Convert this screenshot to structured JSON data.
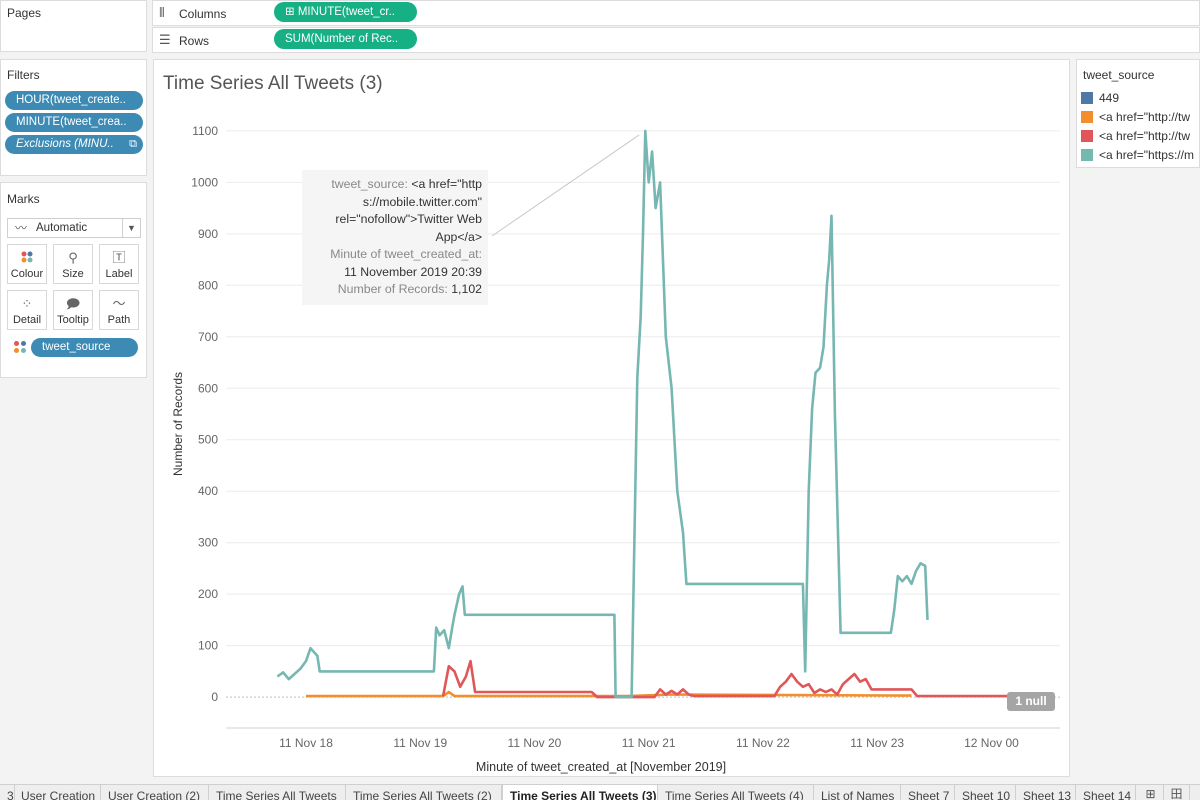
{
  "pages": {
    "title": "Pages"
  },
  "shelves": {
    "columns": {
      "label": "Columns",
      "icon": "columns-icon",
      "pill": "MINUTE(tweet_cr..",
      "pill_icon": "⊞"
    },
    "rows": {
      "label": "Rows",
      "icon": "rows-icon",
      "pill": "SUM(Number of Rec.."
    }
  },
  "filters": {
    "title": "Filters",
    "items": [
      "HOUR(tweet_create..",
      "MINUTE(tweet_crea..",
      "Exclusions (MINU.."
    ]
  },
  "marks": {
    "title": "Marks",
    "type": "Automatic",
    "buttons": [
      {
        "label": "Colour",
        "icon": "colour-icon"
      },
      {
        "label": "Size",
        "icon": "size-icon"
      },
      {
        "label": "Label",
        "icon": "label-icon"
      },
      {
        "label": "Detail",
        "icon": "detail-icon"
      },
      {
        "label": "Tooltip",
        "icon": "tooltip-icon"
      },
      {
        "label": "Path",
        "icon": "path-icon"
      }
    ],
    "field": "tweet_source"
  },
  "legend": {
    "title": "tweet_source",
    "items": [
      {
        "label": "449",
        "color": "#4e79a7"
      },
      {
        "label": "<a href=\"http://tw",
        "color": "#f28e2b"
      },
      {
        "label": "<a href=\"http://tw",
        "color": "#e15759"
      },
      {
        "label": "<a href=\"https://m",
        "color": "#76b7b2"
      }
    ]
  },
  "tooltip": {
    "source_key": "tweet_source:",
    "source_val_1": "<a href=\"http",
    "source_val_2": "s://mobile.twitter.com\"",
    "source_val_3": "rel=\"nofollow\">Twitter Web",
    "source_val_4": "App</a>",
    "minute_key": "Minute of tweet_created_at:",
    "minute_val": "11 November 2019 20:39",
    "records_key": "Number of Records:",
    "records_val": "1,102"
  },
  "null_badge": "1 null",
  "tabs": {
    "items": [
      "3",
      "User Creation",
      "User Creation (2)",
      "Time Series All Tweets",
      "Time Series All Tweets (2)",
      "Time Series All Tweets (3)",
      "Time Series All Tweets (4)",
      "List of Names",
      "Sheet 7",
      "Sheet 10",
      "Sheet 13",
      "Sheet 14"
    ],
    "active": "Time Series All Tweets (3)"
  },
  "chart_data": {
    "type": "line",
    "title": "Time Series All Tweets (3)",
    "xlabel": "Minute of tweet_created_at [November 2019]",
    "ylabel": "Number of Records",
    "x_ticks": [
      "11 Nov 18",
      "11 Nov 19",
      "11 Nov 20",
      "11 Nov 21",
      "11 Nov 22",
      "11 Nov 23",
      "12 Nov 00"
    ],
    "x_range": [
      17.3,
      24.6
    ],
    "ylim": [
      -60,
      1160
    ],
    "y_ticks": [
      0,
      100,
      200,
      300,
      400,
      500,
      600,
      700,
      800,
      900,
      1000,
      1100
    ],
    "grid": true,
    "legend_position": "right",
    "series": [
      {
        "name": "<a href=\"https://m",
        "color": "#76b7b2",
        "points": [
          [
            17.75,
            40
          ],
          [
            17.8,
            48
          ],
          [
            17.85,
            35
          ],
          [
            17.9,
            45
          ],
          [
            17.95,
            55
          ],
          [
            18.0,
            70
          ],
          [
            18.04,
            95
          ],
          [
            18.1,
            80
          ],
          [
            18.12,
            50
          ],
          [
            19.12,
            50
          ],
          [
            19.14,
            135
          ],
          [
            19.17,
            120
          ],
          [
            19.21,
            130
          ],
          [
            19.25,
            95
          ],
          [
            19.28,
            135
          ],
          [
            19.3,
            160
          ],
          [
            19.34,
            200
          ],
          [
            19.37,
            215
          ],
          [
            19.39,
            160
          ],
          [
            20.7,
            160
          ],
          [
            20.71,
            0
          ],
          [
            20.85,
            0
          ],
          [
            20.87,
            250
          ],
          [
            20.9,
            620
          ],
          [
            20.93,
            740
          ],
          [
            20.95,
            900
          ],
          [
            20.97,
            1100
          ],
          [
            21.0,
            1000
          ],
          [
            21.03,
            1060
          ],
          [
            21.06,
            950
          ],
          [
            21.1,
            1000
          ],
          [
            21.15,
            700
          ],
          [
            21.2,
            600
          ],
          [
            21.25,
            400
          ],
          [
            21.3,
            320
          ],
          [
            21.33,
            220
          ],
          [
            22.35,
            220
          ],
          [
            22.37,
            50
          ],
          [
            22.4,
            400
          ],
          [
            22.43,
            560
          ],
          [
            22.46,
            630
          ],
          [
            22.5,
            640
          ],
          [
            22.53,
            680
          ],
          [
            22.56,
            800
          ],
          [
            22.58,
            850
          ],
          [
            22.6,
            935
          ],
          [
            22.63,
            550
          ],
          [
            22.68,
            125
          ],
          [
            23.12,
            125
          ],
          [
            23.15,
            170
          ],
          [
            23.18,
            235
          ],
          [
            23.22,
            225
          ],
          [
            23.26,
            235
          ],
          [
            23.3,
            220
          ],
          [
            23.34,
            245
          ],
          [
            23.38,
            260
          ],
          [
            23.42,
            255
          ],
          [
            23.44,
            150
          ]
        ]
      },
      {
        "name": "<a href=\"http://tw",
        "color": "#e15759",
        "points": [
          [
            19.2,
            2
          ],
          [
            19.25,
            60
          ],
          [
            19.3,
            50
          ],
          [
            19.35,
            20
          ],
          [
            19.4,
            40
          ],
          [
            19.44,
            70
          ],
          [
            19.48,
            10
          ],
          [
            19.52,
            10
          ],
          [
            20.5,
            10
          ],
          [
            20.55,
            0
          ],
          [
            21.05,
            0
          ],
          [
            21.1,
            15
          ],
          [
            21.15,
            5
          ],
          [
            21.2,
            12
          ],
          [
            21.25,
            5
          ],
          [
            21.3,
            15
          ],
          [
            21.35,
            5
          ],
          [
            21.4,
            2
          ],
          [
            22.1,
            2
          ],
          [
            22.15,
            20
          ],
          [
            22.2,
            30
          ],
          [
            22.25,
            45
          ],
          [
            22.3,
            30
          ],
          [
            22.35,
            20
          ],
          [
            22.4,
            25
          ],
          [
            22.45,
            8
          ],
          [
            22.5,
            15
          ],
          [
            22.55,
            10
          ],
          [
            22.6,
            15
          ],
          [
            22.65,
            5
          ],
          [
            22.7,
            25
          ],
          [
            22.75,
            35
          ],
          [
            22.8,
            45
          ],
          [
            22.85,
            30
          ],
          [
            22.9,
            35
          ],
          [
            22.95,
            15
          ],
          [
            23.3,
            15
          ],
          [
            23.35,
            2
          ],
          [
            24.4,
            2
          ]
        ]
      },
      {
        "name": "<a href=\"http://tw",
        "color": "#f28e2b",
        "points": [
          [
            18.0,
            2
          ],
          [
            19.2,
            2
          ],
          [
            19.25,
            10
          ],
          [
            19.3,
            2
          ],
          [
            20.8,
            2
          ],
          [
            21.2,
            5
          ],
          [
            23.3,
            3
          ]
        ]
      }
    ]
  }
}
